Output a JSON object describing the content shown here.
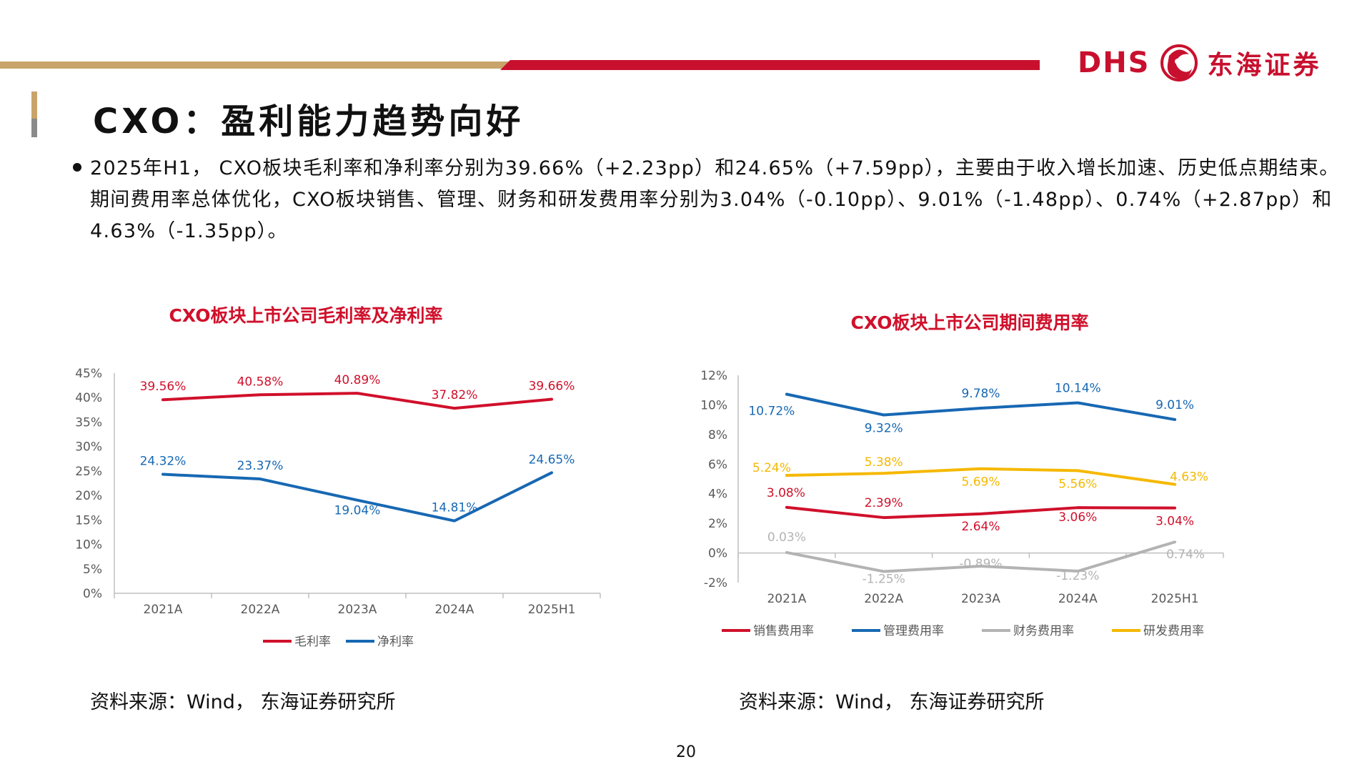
{
  "header": {
    "logo_text": "DHS",
    "logo_cn": "东海证券",
    "title": "CXO：盈利能力趋势向好"
  },
  "bullet": "2025年H1， CXO板块毛利率和净利率分别为39.66%（+2.23pp）和24.65%（+7.59pp），主要由于收入增长加速、历史低点期结束。期间费用率总体优化，CXO板块销售、管理、财务和研发费用率分别为3.04%（-0.10pp）、9.01%（-1.48pp）、0.74%（+2.87pp）和4.63%（-1.35pp）。",
  "colors": {
    "red": "#d0102b",
    "blue": "#1768b3",
    "gray": "#b3b3b3",
    "yellow": "#f5b800",
    "gold": "#c9a46a"
  },
  "chart_data": [
    {
      "type": "line",
      "title": "CXO板块上市公司毛利率及净利率",
      "categories": [
        "2021A",
        "2022A",
        "2023A",
        "2024A",
        "2025H1"
      ],
      "ylim": [
        0,
        45
      ],
      "yticks": [
        0,
        5,
        10,
        15,
        20,
        25,
        30,
        35,
        40,
        45
      ],
      "ytick_labels": [
        "0%",
        "5%",
        "10%",
        "15%",
        "20%",
        "25%",
        "30%",
        "35%",
        "40%",
        "45%"
      ],
      "series": [
        {
          "name": "毛利率",
          "color": "#d0102b",
          "values": [
            39.56,
            40.58,
            40.89,
            37.82,
            39.66
          ],
          "labels": [
            "39.56%",
            "40.58%",
            "40.89%",
            "37.82%",
            "39.66%"
          ]
        },
        {
          "name": "净利率",
          "color": "#1768b3",
          "values": [
            24.32,
            23.37,
            19.04,
            14.81,
            24.65
          ],
          "labels": [
            "24.32%",
            "23.37%",
            "19.04%",
            "14.81%",
            "24.65%"
          ]
        }
      ],
      "legend": "bottom",
      "source": "资料来源：Wind， 东海证券研究所"
    },
    {
      "type": "line",
      "title": "CXO板块上市公司期间费用率",
      "categories": [
        "2021A",
        "2022A",
        "2023A",
        "2024A",
        "2025H1"
      ],
      "ylim": [
        -2,
        12
      ],
      "yticks": [
        -2,
        0,
        2,
        4,
        6,
        8,
        10,
        12
      ],
      "ytick_labels": [
        "-2%",
        "0%",
        "2%",
        "4%",
        "6%",
        "8%",
        "10%",
        "12%"
      ],
      "series": [
        {
          "name": "销售费用率",
          "color": "#d0102b",
          "values": [
            3.08,
            2.39,
            2.64,
            3.06,
            3.04
          ],
          "labels": [
            "3.08%",
            "2.39%",
            "2.64%",
            "3.06%",
            "3.04%"
          ]
        },
        {
          "name": "管理费用率",
          "color": "#1768b3",
          "values": [
            10.72,
            9.32,
            9.78,
            10.14,
            9.01
          ],
          "labels": [
            "10.72%",
            "9.32%",
            "9.78%",
            "10.14%",
            "9.01%"
          ]
        },
        {
          "name": "财务费用率",
          "color": "#b3b3b3",
          "values": [
            0.03,
            -1.25,
            -0.89,
            -1.23,
            0.74
          ],
          "labels": [
            "0.03%",
            "-1.25%",
            "-0.89%",
            "-1.23%",
            "0.74%"
          ]
        },
        {
          "name": "研发费用率",
          "color": "#f5b800",
          "values": [
            5.24,
            5.38,
            5.69,
            5.56,
            4.63
          ],
          "labels": [
            "5.24%",
            "5.38%",
            "5.69%",
            "5.56%",
            "4.63%"
          ]
        }
      ],
      "legend": "bottom",
      "source": "资料来源：Wind， 东海证券研究所"
    }
  ],
  "page_number": "20"
}
